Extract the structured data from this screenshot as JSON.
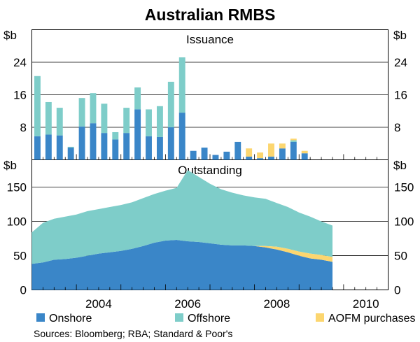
{
  "chart_data": {
    "type": "bar+area",
    "title": "Australian RMBS",
    "unit_label": "$b",
    "x_axis": {
      "ticks": [
        "2004",
        "2006",
        "2008",
        "2010"
      ],
      "range_years": [
        2003.0,
        2011.0
      ]
    },
    "colors": {
      "onshore": "#3a86c8",
      "offshore": "#7ecdc9",
      "aofm": "#fcd66f"
    },
    "legend": [
      {
        "key": "onshore",
        "label": "Onshore"
      },
      {
        "key": "offshore",
        "label": "Offshore"
      },
      {
        "key": "aofm",
        "label": "AOFM purchases"
      }
    ],
    "source": "Sources: Bloomberg; RBA; Standard & Poor's",
    "issuance": {
      "title": "Issuance",
      "ylim": [
        0,
        32
      ],
      "yticks": [
        8,
        16,
        24
      ],
      "quarters": [
        "2003Q1",
        "2003Q2",
        "2003Q3",
        "2003Q4",
        "2004Q1",
        "2004Q2",
        "2004Q3",
        "2004Q4",
        "2005Q1",
        "2005Q2",
        "2005Q3",
        "2005Q4",
        "2006Q1",
        "2006Q2",
        "2006Q3",
        "2006Q4",
        "2007Q1",
        "2007Q2",
        "2007Q3",
        "2007Q4",
        "2008Q1",
        "2008Q2",
        "2008Q3",
        "2008Q4",
        "2009Q1",
        "2009Q2",
        "2009Q3",
        "2009Q4"
      ],
      "series": [
        {
          "name": "Onshore",
          "values": [
            5.8,
            6.2,
            6.0,
            3.0,
            8.2,
            9.0,
            6.6,
            5.0,
            6.6,
            12.4,
            5.8,
            5.6,
            8.0,
            11.6,
            2.2,
            3.0,
            1.2,
            2.0,
            4.4,
            0.8,
            0.4,
            0.8,
            2.8,
            4.4,
            1.6,
            0,
            0,
            0
          ]
        },
        {
          "name": "Offshore",
          "values": [
            14.8,
            8.0,
            6.8,
            0.2,
            7.0,
            7.4,
            7.2,
            1.8,
            6.2,
            5.4,
            6.6,
            7.6,
            11.2,
            13.6,
            0,
            0,
            0,
            0,
            0,
            0,
            0,
            0,
            0,
            0.4,
            0,
            0,
            0,
            0
          ]
        },
        {
          "name": "AOFM purchases",
          "values": [
            0,
            0,
            0,
            0,
            0,
            0,
            0,
            0,
            0,
            0,
            0,
            0,
            0,
            0,
            0,
            0,
            0,
            0,
            0,
            2.0,
            1.4,
            3.2,
            1.2,
            0.4,
            0.6,
            0,
            0,
            0
          ]
        }
      ]
    },
    "outstanding": {
      "title": "Outstanding",
      "ylim": [
        0,
        190
      ],
      "yticks": [
        0,
        50,
        100,
        150
      ],
      "x": [
        2003.0,
        2003.25,
        2003.5,
        2003.75,
        2004.0,
        2004.25,
        2004.5,
        2004.75,
        2005.0,
        2005.25,
        2005.5,
        2005.75,
        2006.0,
        2006.25,
        2006.5,
        2006.75,
        2007.0,
        2007.25,
        2007.5,
        2007.75,
        2008.0,
        2008.25,
        2008.5,
        2008.75,
        2009.0,
        2009.25,
        2009.5,
        2009.75
      ],
      "series": [
        {
          "name": "Onshore",
          "values": [
            38,
            40,
            44,
            45,
            47,
            50,
            53,
            55,
            57,
            60,
            64,
            69,
            72,
            73,
            71,
            70,
            68,
            66,
            65,
            65,
            64,
            62,
            59,
            55,
            50,
            46,
            44,
            41
          ]
        },
        {
          "name": "Offshore",
          "values": [
            46,
            58,
            60,
            62,
            63,
            65,
            65,
            66,
            67,
            68,
            70,
            71,
            73,
            76,
            104,
            95,
            87,
            81,
            77,
            73,
            71,
            69,
            64,
            61,
            57,
            54,
            49,
            46
          ]
        },
        {
          "name": "AOFM purchases",
          "values": [
            0,
            0,
            0,
            0,
            0,
            0,
            0,
            0,
            0,
            0,
            0,
            0,
            0,
            0,
            0,
            0,
            0,
            0,
            0,
            0,
            0,
            2,
            4,
            5,
            6,
            7,
            7,
            7
          ]
        }
      ]
    }
  }
}
